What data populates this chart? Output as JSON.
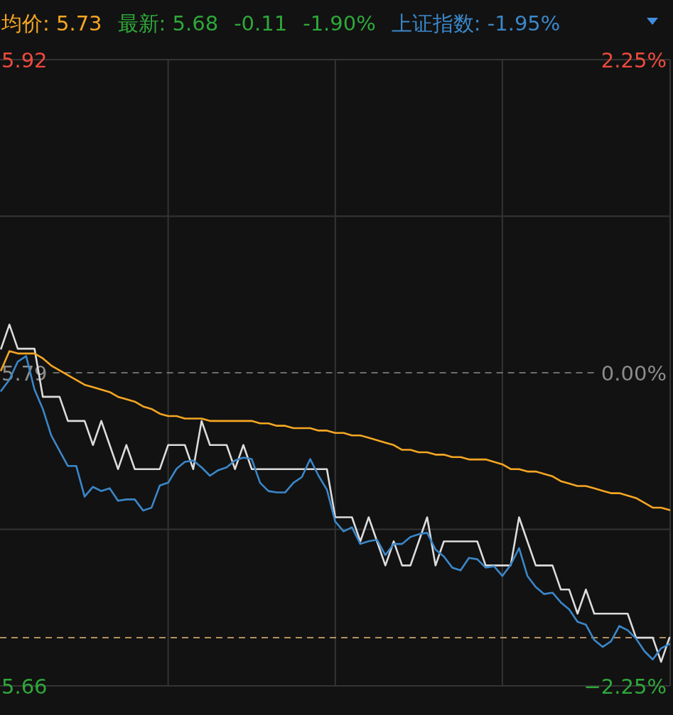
{
  "chart_data": {
    "type": "line",
    "annotations": [
      "均价: 5.73",
      "最新: 5.68",
      "-0.11",
      "-1.90%",
      "上证指数: -1.95%"
    ],
    "categories": [
      null,
      null,
      null,
      null,
      null,
      null,
      null,
      null,
      null,
      null,
      null,
      null,
      null,
      null,
      null,
      null,
      null,
      null,
      null,
      null,
      null,
      null,
      null,
      null,
      null,
      null,
      null,
      null,
      null,
      null,
      null,
      null,
      null,
      null,
      null,
      null,
      null,
      null,
      null,
      null,
      null,
      null,
      null,
      null,
      null,
      null,
      null,
      null,
      null,
      null,
      null,
      null,
      null,
      null,
      null,
      null,
      null,
      null,
      null,
      null,
      null,
      null,
      null,
      null,
      null,
      null,
      null,
      null,
      null,
      null,
      null,
      null,
      null,
      null,
      null,
      null,
      null,
      null,
      null,
      null,
      null
    ],
    "ylim": [
      5.66,
      5.92
    ],
    "yticks": [
      5.92,
      {
        "value": 5.855,
        "label": null
      },
      5.79,
      {
        "value": 5.725,
        "label": null
      },
      5.66
    ],
    "y2lim": [
      -2.25,
      2.25
    ],
    "y2ticks": [
      {
        "value": 2.25,
        "label": "2.25%"
      },
      {
        "value": 0,
        "label": "0.00%"
      },
      {
        "value": -2.25,
        "label": "−2.25%"
      }
    ],
    "grid": true,
    "ref_lines": [
      {
        "axis": "y",
        "value": 5.79,
        "color": "#8c8c8c",
        "line_style": "dashed"
      },
      {
        "axis": "y",
        "value": 5.68,
        "color": "#c9a26a",
        "line_style": "dashed"
      }
    ],
    "series": [
      {
        "color": "#dcdcdc",
        "values": [
          5.8,
          5.81,
          5.8,
          5.8,
          5.8,
          5.78,
          5.78,
          5.78,
          5.77,
          5.77,
          5.77,
          5.76,
          5.77,
          5.76,
          5.75,
          5.76,
          5.75,
          5.75,
          5.75,
          5.75,
          5.76,
          5.76,
          5.76,
          5.75,
          5.77,
          5.76,
          5.76,
          5.76,
          5.75,
          5.76,
          5.75,
          5.75,
          5.75,
          5.75,
          5.75,
          5.75,
          5.75,
          5.75,
          5.75,
          5.75,
          5.73,
          5.73,
          5.73,
          5.72,
          5.73,
          5.72,
          5.71,
          5.72,
          5.71,
          5.71,
          5.72,
          5.73,
          5.71,
          5.72,
          5.72,
          5.72,
          5.72,
          5.72,
          5.71,
          5.71,
          5.71,
          5.71,
          5.73,
          5.72,
          5.71,
          5.71,
          5.71,
          5.7,
          5.7,
          5.69,
          5.7,
          5.69,
          5.69,
          5.69,
          5.69,
          5.69,
          5.68,
          5.68,
          5.68,
          5.67,
          5.68
        ]
      },
      {
        "color": "#f5a623",
        "values": [
          5.791,
          5.799,
          5.798,
          5.798,
          5.798,
          5.796,
          5.793,
          5.791,
          5.789,
          5.787,
          5.785,
          5.784,
          5.783,
          5.782,
          5.78,
          5.779,
          5.778,
          5.776,
          5.775,
          5.773,
          5.772,
          5.772,
          5.771,
          5.771,
          5.771,
          5.77,
          5.77,
          5.77,
          5.77,
          5.77,
          5.77,
          5.769,
          5.769,
          5.768,
          5.768,
          5.767,
          5.767,
          5.767,
          5.766,
          5.766,
          5.765,
          5.765,
          5.764,
          5.764,
          5.763,
          5.762,
          5.761,
          5.76,
          5.758,
          5.758,
          5.757,
          5.757,
          5.756,
          5.756,
          5.755,
          5.755,
          5.754,
          5.754,
          5.754,
          5.753,
          5.752,
          5.75,
          5.75,
          5.749,
          5.749,
          5.748,
          5.747,
          5.745,
          5.744,
          5.743,
          5.743,
          5.742,
          5.741,
          5.74,
          5.74,
          5.739,
          5.738,
          5.736,
          5.734,
          5.734,
          5.733
        ]
      },
      {
        "color": "#3b87c9",
        "axis": "y2",
        "values": [
          -0.13,
          -0.05,
          0.08,
          0.12,
          -0.12,
          -0.26,
          -0.45,
          -0.56,
          -0.67,
          -0.67,
          -0.89,
          -0.82,
          -0.85,
          -0.83,
          -0.92,
          -0.91,
          -0.91,
          -0.99,
          -0.97,
          -0.81,
          -0.79,
          -0.69,
          -0.64,
          -0.63,
          -0.68,
          -0.74,
          -0.7,
          -0.68,
          -0.63,
          -0.61,
          -0.62,
          -0.79,
          -0.85,
          -0.86,
          -0.86,
          -0.79,
          -0.75,
          -0.62,
          -0.74,
          -0.84,
          -1.07,
          -1.14,
          -1.11,
          -1.23,
          -1.21,
          -1.2,
          -1.31,
          -1.23,
          -1.23,
          -1.18,
          -1.16,
          -1.15,
          -1.27,
          -1.32,
          -1.4,
          -1.42,
          -1.33,
          -1.34,
          -1.4,
          -1.39,
          -1.46,
          -1.38,
          -1.26,
          -1.46,
          -1.54,
          -1.59,
          -1.58,
          -1.65,
          -1.7,
          -1.79,
          -1.81,
          -1.92,
          -1.97,
          -1.93,
          -1.82,
          -1.85,
          -1.91,
          -2.0,
          -2.06,
          -1.98,
          -1.95
        ]
      }
    ]
  }
}
